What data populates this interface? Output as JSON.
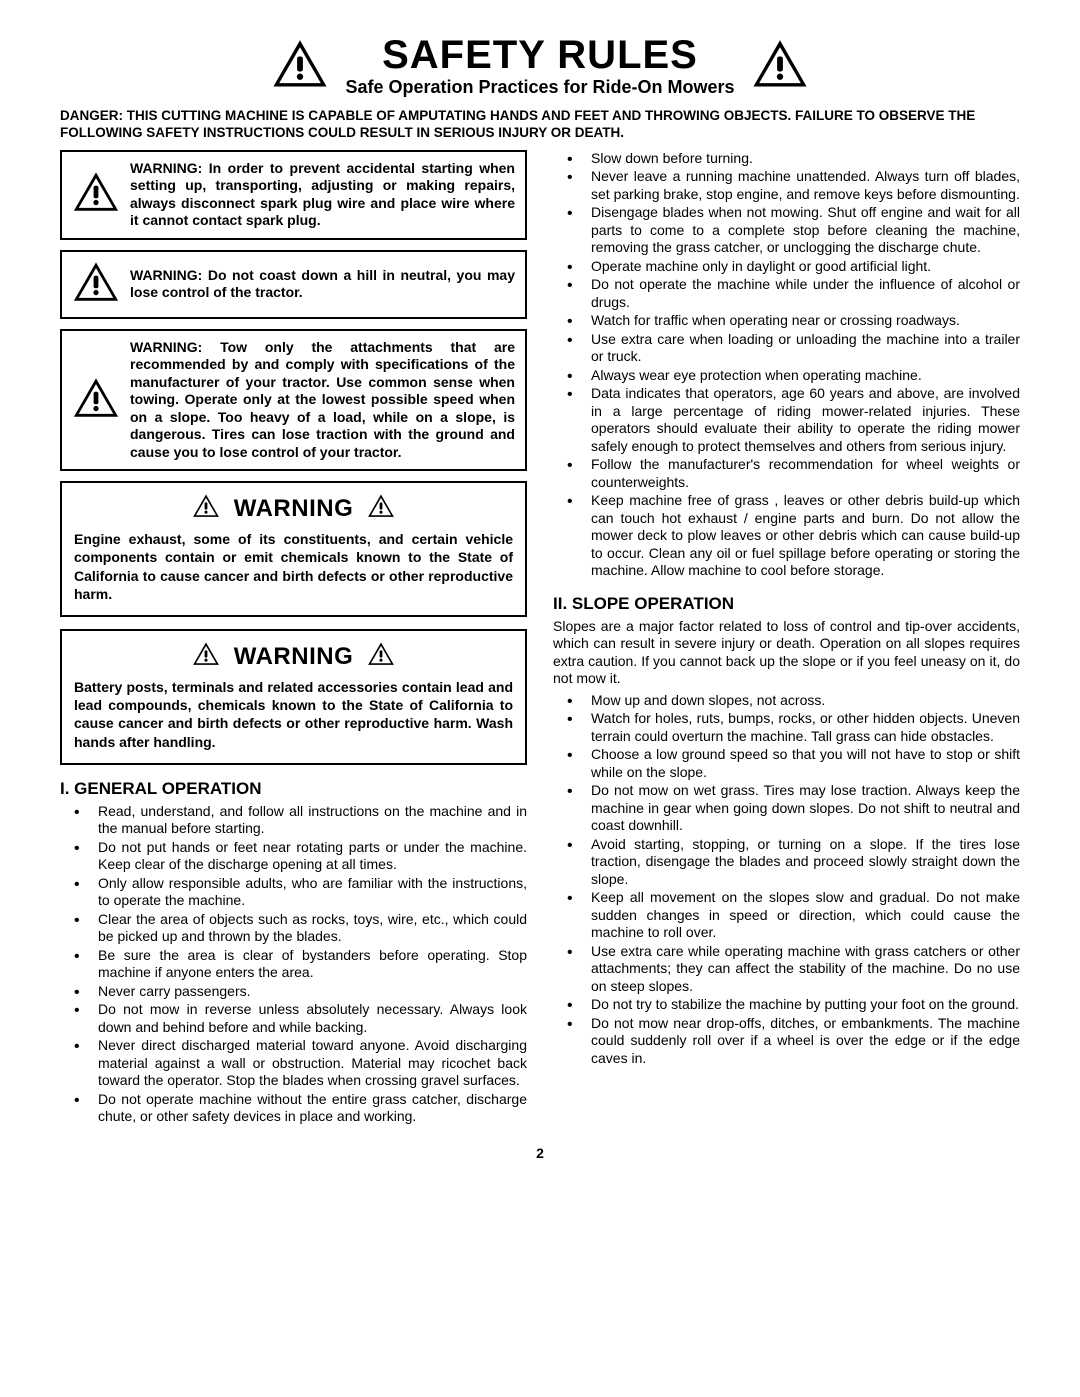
{
  "header": {
    "title": "SAFETY RULES",
    "subtitle": "Safe Operation Practices for Ride-On Mowers"
  },
  "danger": "DANGER:  THIS CUTTING MACHINE IS CAPABLE OF AMPUTATING HANDS AND FEET AND THROWING OBJECTS.  FAILURE TO OBSERVE THE FOLLOWING SAFETY INSTRUCTIONS COULD RESULT IN SERIOUS INJURY OR DEATH.",
  "warnings": [
    "WARNING: In order to prevent accidental starting when setting up, transporting, adjusting or making repairs, always disconnect spark plug wire and place wire where it cannot contact spark plug.",
    "WARNING: Do not coast down a hill in neutral, you may lose control of the tractor.",
    "WARNING: Tow only the attachments that are recommended by and comply with specifications of the manufacturer of your tractor. Use common sense when towing. Operate only at the lowest possible speed when on a slope.  Too heavy of a load, while on a slope, is dangerous.  Tires can lose traction with the ground and cause you to lose control of your tractor."
  ],
  "caWarningLabel": "WARNING",
  "caWarnings": [
    "Engine exhaust, some of its constituents, and certain vehicle components contain or emit chemicals known to the State of California to cause cancer and birth defects or other reproductive harm.",
    "Battery posts, terminals and related accessories contain lead and lead compounds, chemicals known to the State of California to cause cancer and birth defects or other reproductive harm. Wash hands after handling."
  ],
  "section1": {
    "heading": "I. GENERAL OPERATION",
    "items": [
      "Read, understand, and follow all instructions on the machine and in the manual before starting.",
      "Do not put hands or feet near rotating parts or under the machine. Keep clear of the discharge opening at all times.",
      "Only allow responsible adults, who are familiar with the instructions, to operate the machine.",
      "Clear the area of objects such as  rocks, toys, wire, etc., which could be picked up and thrown by the blades.",
      "Be sure the area is clear of bystanders before operating.  Stop machine if anyone enters the area.",
      "Never carry passengers.",
      "Do not mow in reverse unless absolutely necessary. Always look down and behind before and while backing.",
      "Never direct discharged material toward anyone. Avoid discharging material against a wall or obstruction. Material may ricochet back toward the operator. Stop the blades when crossing gravel surfaces.",
      "Do not operate machine without the entire grass catcher, discharge chute, or other safety devices in place and working."
    ]
  },
  "rightTopItems": [
    "Slow down before turning.",
    "Never leave a running machine unattended.  Always turn off blades, set parking brake, stop engine, and remove keys before dismounting.",
    "Disengage blades when not mowing. Shut off engine and wait for all parts to come to a complete stop before cleaning the machine, removing the grass catcher, or unclogging the discharge chute.",
    "Operate machine only in daylight or good artificial light.",
    "Do not operate the machine while under the influence of alcohol or drugs.",
    "Watch for traffic when operating near or crossing roadways.",
    "Use extra care when loading or unloading the machine into a trailer or truck.",
    "Always wear eye protection when operating machine.",
    "Data indicates that operators, age 60 years and above, are involved in a large percentage of riding mower-related injuries.  These operators should evaluate their ability to operate the riding mower safely enough to protect themselves and others from serious injury.",
    "Follow the manufacturer's recommendation for wheel weights or counterweights.",
    "Keep machine free of grass , leaves or other debris build-up which can touch hot exhaust / engine parts and burn. Do not allow the mower deck to plow leaves or other debris which can cause build-up to occur. Clean any oil or fuel spillage before operating or storing the machine. Allow machine to cool before storage."
  ],
  "section2": {
    "heading": "II. SLOPE OPERATION",
    "intro": "Slopes are a major factor related to loss of control and tip-over accidents, which can result in severe injury or death.  Operation on all slopes requires extra caution.  If you cannot back up the slope or if you feel uneasy on it, do not mow it.",
    "items": [
      "Mow up and down slopes, not across.",
      "Watch for holes, ruts, bumps, rocks, or other hidden objects.  Uneven terrain could overturn the machine. Tall grass can hide obstacles.",
      "Choose a low ground speed so that you will not have to stop or shift while on the slope.",
      "Do not mow on wet grass. Tires may lose traction. Always keep the machine in gear when going down slopes. Do not shift to neutral and coast downhill.",
      "Avoid starting, stopping, or turning on a slope.  If the tires lose traction,  disengage the blades and proceed slowly straight down the slope.",
      "Keep all movement on the slopes slow and gradual. Do not make sudden changes in speed or direction, which could cause the machine to roll over.",
      "Use extra care while operating machine with grass catchers or other attachments; they can affect the stability of the machine. Do no use on steep slopes.",
      "Do not  try to stabilize the machine by putting your foot on the ground.",
      "Do not mow near drop-offs, ditches, or embankments. The machine could suddenly roll over if a wheel is over the edge or if the edge caves in."
    ]
  },
  "pageNumber": "2",
  "colors": {
    "text": "#000000",
    "border": "#000000",
    "bg": "#ffffff"
  }
}
